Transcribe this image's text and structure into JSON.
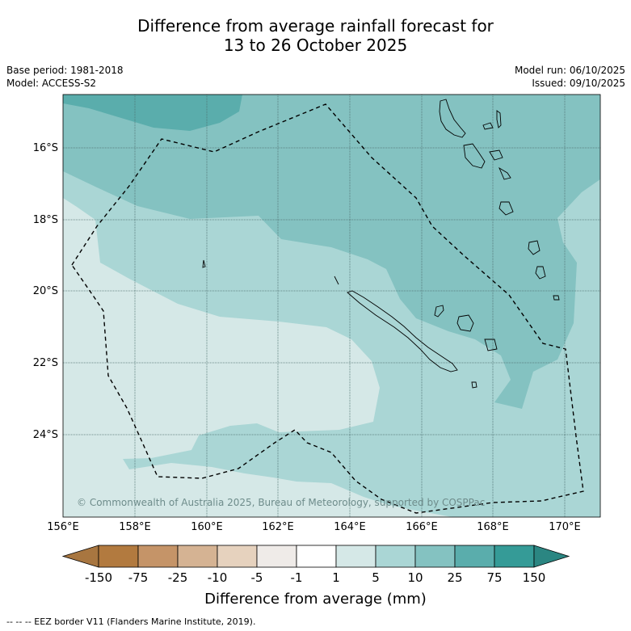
{
  "header": {
    "title_line1": "Difference from average rainfall forecast for",
    "title_line2": "13 to 26 October 2025",
    "base_period": "Base period: 1981-2018",
    "model": "Model: ACCESS-S2",
    "model_run": "Model run: 06/10/2025",
    "issued": "Issued: 09/10/2025"
  },
  "map": {
    "lat_labels": [
      "16°S",
      "18°S",
      "20°S",
      "22°S",
      "24°S"
    ],
    "lon_labels": [
      "156°E",
      "158°E",
      "160°E",
      "162°E",
      "164°E",
      "166°E",
      "168°E",
      "170°E"
    ],
    "copyright": "© Commonwealth of Australia 2025, Bureau of Meteorology, supported by COSPPac",
    "extent": {
      "lon_min": 156,
      "lon_max": 171,
      "lat_min": -26.4,
      "lat_max": -14.6
    }
  },
  "legend": {
    "tick_labels": [
      "-150",
      "-75",
      "-25",
      "-10",
      "-5",
      "-1",
      "1",
      "5",
      "10",
      "25",
      "75",
      "150"
    ],
    "colors": [
      "#a87640",
      "#b27a3f",
      "#c59468",
      "#d5b393",
      "#e6d2be",
      "#efebe8",
      "#ffffff",
      "#d5e8e7",
      "#aad6d5",
      "#84c2c1",
      "#5aadac",
      "#359b97",
      "#2b8682"
    ],
    "title": "Difference from average (mm)"
  },
  "footnote": "--  --  -- EEZ border V11 (Flanders Marine Institute, 2019)."
}
